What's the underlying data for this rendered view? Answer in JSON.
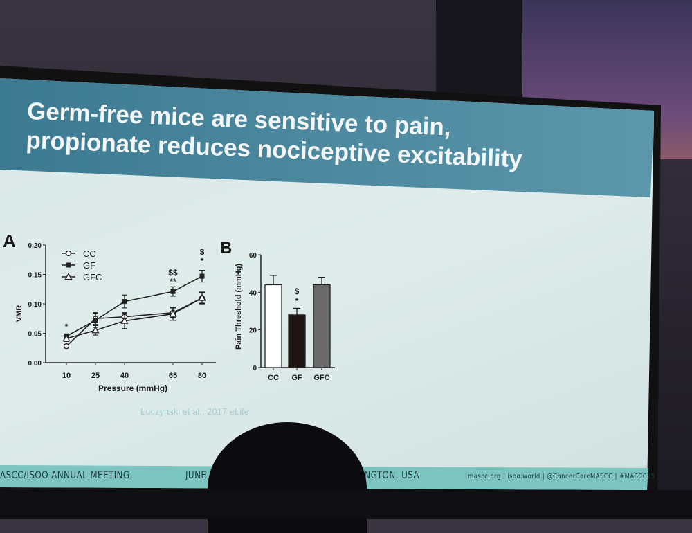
{
  "slide": {
    "title_line1": "Germ-free mice are sensitive to pain,",
    "title_line2": "propionate reduces nociceptive excitability",
    "citation": "Luczynski et al., 2017 eLife",
    "footer_left": "ASCC/ISOO ANNUAL MEETING",
    "footer_date": "JUNE 2",
    "footer_location": "HINGTON, USA",
    "footer_links": "mascc.org | isoo.world | @CancerCareMASCC | #MASCC25",
    "colors": {
      "header": "#4d8aa0",
      "slide_bg": "#dcebea",
      "footer": "#7cc4c0"
    }
  },
  "chart_data": [
    {
      "type": "line",
      "panel_label": "A",
      "xlabel": "Pressure (mmHg)",
      "ylabel": "VMR",
      "x": [
        10,
        25,
        40,
        65,
        80
      ],
      "x_ticks": [
        "10",
        "25",
        "40",
        "65",
        "80"
      ],
      "y_ticks": [
        "0.00",
        "0.05",
        "0.10",
        "0.15",
        "0.20"
      ],
      "ylim": [
        0,
        0.2
      ],
      "legend_position": "top-left",
      "series": [
        {
          "name": "CC",
          "marker": "open-circle",
          "values": [
            0.028,
            0.075,
            0.078,
            0.085,
            0.11
          ],
          "err": [
            0.003,
            0.01,
            0.007,
            0.008,
            0.01
          ]
        },
        {
          "name": "GF",
          "marker": "filled-square",
          "values": [
            0.045,
            0.072,
            0.104,
            0.121,
            0.147
          ],
          "err": [
            0.004,
            0.012,
            0.011,
            0.008,
            0.01
          ]
        },
        {
          "name": "GFC",
          "marker": "open-triangle",
          "values": [
            0.041,
            0.055,
            0.071,
            0.083,
            0.11
          ],
          "err": [
            0.005,
            0.008,
            0.013,
            0.011,
            0.009
          ]
        }
      ],
      "annotations": [
        {
          "x": 10,
          "text": "*"
        },
        {
          "x": 65,
          "text": "$$"
        },
        {
          "x": 65,
          "text": "**"
        },
        {
          "x": 80,
          "text": "$"
        },
        {
          "x": 80,
          "text": "*"
        }
      ]
    },
    {
      "type": "bar",
      "panel_label": "B",
      "ylabel": "Pain Threshold (mmHg)",
      "categories": [
        "CC",
        "GF",
        "GFC"
      ],
      "values": [
        44,
        28,
        44
      ],
      "err": [
        5,
        3.5,
        4
      ],
      "bar_colors": [
        "#ffffff",
        "#1e1414",
        "#6a6a6a"
      ],
      "y_ticks": [
        "0",
        "20",
        "40",
        "60"
      ],
      "ylim": [
        0,
        60
      ],
      "annotations": [
        {
          "category": "GF",
          "text": "$"
        },
        {
          "category": "GF",
          "text": "*"
        }
      ]
    }
  ]
}
